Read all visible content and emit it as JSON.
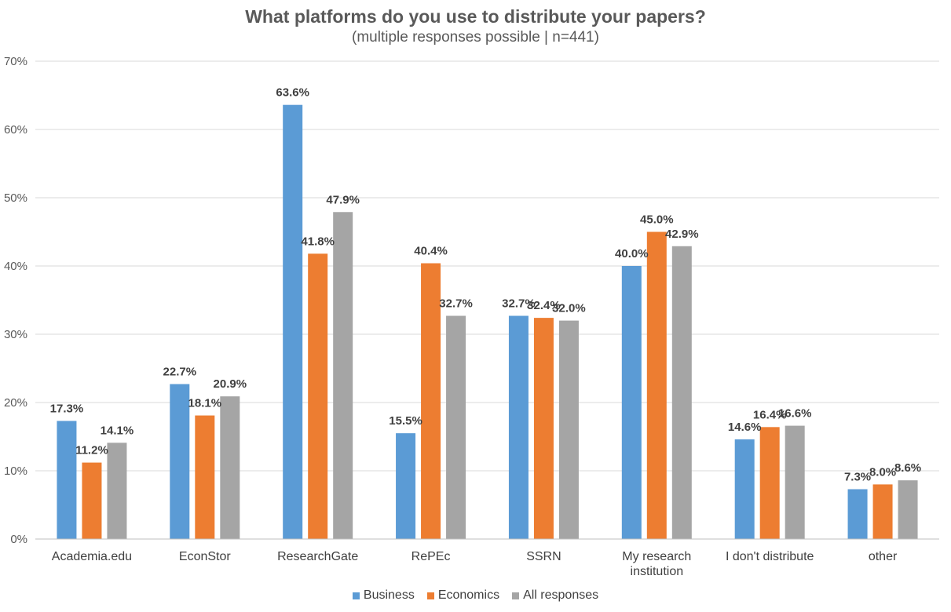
{
  "chart_data": {
    "type": "bar",
    "title": "What platforms do you use to distribute your papers?",
    "subtitle": "(multiple responses possible | n=441)",
    "categories": [
      "Academia.edu",
      "EconStor",
      "ResearchGate",
      "RePEc",
      "SSRN",
      "My research institution",
      "I don't distribute",
      "other"
    ],
    "series": [
      {
        "name": "Business",
        "color": "#5B9BD5",
        "values": [
          17.3,
          22.7,
          63.6,
          15.5,
          32.7,
          40.0,
          14.6,
          7.3
        ],
        "labels": [
          "17.3%",
          "22.7%",
          "63.6%",
          "15.5%",
          "32.7%",
          "40.0%",
          "14.6%",
          "7.3%"
        ]
      },
      {
        "name": "Economics",
        "color": "#ED7D31",
        "values": [
          11.2,
          18.1,
          41.8,
          40.4,
          32.4,
          45.0,
          16.4,
          8.0
        ],
        "labels": [
          "11.2%",
          "18.1%",
          "41.8%",
          "40.4%",
          "32.4%",
          "45.0%",
          "16.4%",
          "8.0%"
        ]
      },
      {
        "name": "All responses",
        "color": "#A5A5A5",
        "values": [
          14.1,
          20.9,
          47.9,
          32.7,
          32.0,
          42.9,
          16.6,
          8.6
        ],
        "labels": [
          "14.1%",
          "20.9%",
          "47.9%",
          "32.7%",
          "32.0%",
          "42.9%",
          "16.6%",
          "8.6%"
        ]
      }
    ],
    "ylim": [
      0,
      70
    ],
    "yticks": [
      "0%",
      "10%",
      "20%",
      "30%",
      "40%",
      "50%",
      "60%",
      "70%"
    ],
    "grid": true,
    "legend_position": "bottom"
  }
}
